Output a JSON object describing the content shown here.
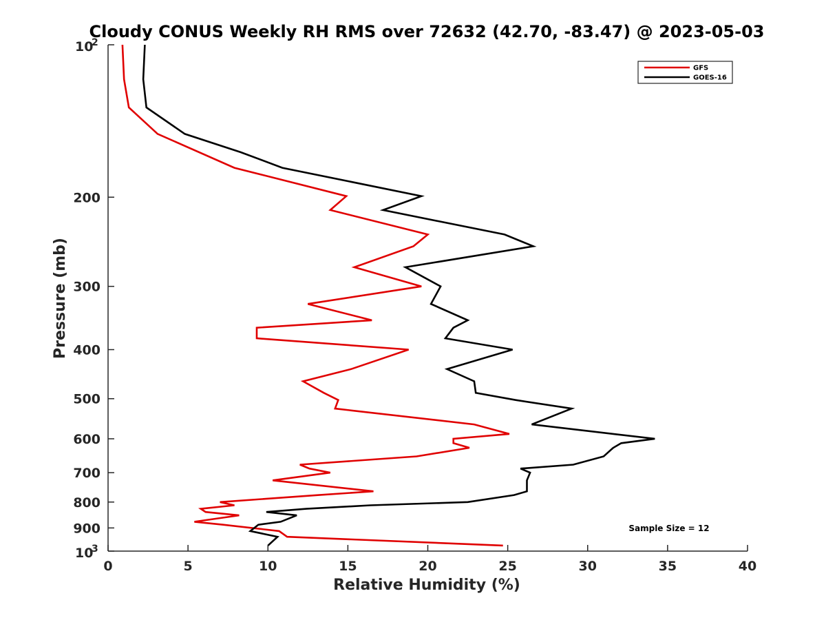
{
  "chart_data": {
    "type": "line",
    "title": "Cloudy CONUS Weekly RH RMS over 72632 (42.70, -83.47) @ 2023-05-03",
    "xlabel": "Relative Humidity (%)",
    "ylabel": "Pressure (mb)",
    "xlim": [
      0,
      40
    ],
    "ylim": [
      100,
      1000
    ],
    "y_scale": "log",
    "y_reversed": true,
    "grid": false,
    "legend_position": "top-right",
    "x_ticks": [
      0,
      5,
      10,
      15,
      20,
      25,
      30,
      35,
      40
    ],
    "x_tick_labels": [
      "0",
      "5",
      "10",
      "15",
      "20",
      "25",
      "30",
      "35",
      "40"
    ],
    "y_ticks": [
      {
        "value": 100,
        "base": "10",
        "exp": "2",
        "label": ""
      },
      {
        "value": 200,
        "base": "",
        "exp": "",
        "label": "200"
      },
      {
        "value": 300,
        "base": "",
        "exp": "",
        "label": "300"
      },
      {
        "value": 400,
        "base": "",
        "exp": "",
        "label": "400"
      },
      {
        "value": 500,
        "base": "",
        "exp": "",
        "label": "500"
      },
      {
        "value": 600,
        "base": "",
        "exp": "",
        "label": "600"
      },
      {
        "value": 700,
        "base": "",
        "exp": "",
        "label": "700"
      },
      {
        "value": 800,
        "base": "",
        "exp": "",
        "label": "800"
      },
      {
        "value": 900,
        "base": "",
        "exp": "",
        "label": "900"
      },
      {
        "value": 1000,
        "base": "10",
        "exp": "3",
        "label": ""
      }
    ],
    "annotation": "Sample Size = 12",
    "series": [
      {
        "name": "GFS",
        "color": "#e00000",
        "points": [
          [
            0.9,
            100
          ],
          [
            1.0,
            117
          ],
          [
            1.3,
            133
          ],
          [
            3.1,
            150
          ],
          [
            7.9,
            175
          ],
          [
            14.9,
            199
          ],
          [
            13.9,
            212
          ],
          [
            20.0,
            237
          ],
          [
            19.1,
            250
          ],
          [
            15.4,
            275
          ],
          [
            19.6,
            300
          ],
          [
            12.5,
            325
          ],
          [
            16.5,
            350
          ],
          [
            9.3,
            362
          ],
          [
            9.3,
            380
          ],
          [
            18.8,
            400
          ],
          [
            15.2,
            437
          ],
          [
            12.2,
            462
          ],
          [
            13.5,
            487
          ],
          [
            14.4,
            503
          ],
          [
            14.2,
            523
          ],
          [
            22.9,
            562
          ],
          [
            25.1,
            587
          ],
          [
            21.6,
            600
          ],
          [
            21.6,
            612
          ],
          [
            22.6,
            625
          ],
          [
            19.3,
            650
          ],
          [
            12.0,
            675
          ],
          [
            12.6,
            687
          ],
          [
            13.9,
            700
          ],
          [
            10.3,
            725
          ],
          [
            16.6,
            762
          ],
          [
            13.2,
            775
          ],
          [
            7.0,
            800
          ],
          [
            7.9,
            812
          ],
          [
            5.8,
            825
          ],
          [
            6.1,
            837
          ],
          [
            8.2,
            850
          ],
          [
            5.4,
            875
          ],
          [
            7.2,
            887
          ],
          [
            10.7,
            913
          ],
          [
            11.2,
            937
          ],
          [
            24.7,
            975
          ]
        ]
      },
      {
        "name": "GOES-16",
        "color": "#000000",
        "points": [
          [
            2.3,
            100
          ],
          [
            2.2,
            117
          ],
          [
            2.4,
            133
          ],
          [
            4.8,
            150
          ],
          [
            8.3,
            163
          ],
          [
            10.9,
            175
          ],
          [
            19.6,
            199
          ],
          [
            17.2,
            212
          ],
          [
            24.8,
            237
          ],
          [
            26.6,
            250
          ],
          [
            18.6,
            275
          ],
          [
            20.8,
            300
          ],
          [
            20.2,
            325
          ],
          [
            22.5,
            350
          ],
          [
            21.6,
            362
          ],
          [
            21.1,
            380
          ],
          [
            25.3,
            400
          ],
          [
            21.2,
            437
          ],
          [
            22.9,
            462
          ],
          [
            23.0,
            487
          ],
          [
            25.5,
            503
          ],
          [
            29.0,
            523
          ],
          [
            26.5,
            562
          ],
          [
            31.6,
            587
          ],
          [
            34.2,
            600
          ],
          [
            32.1,
            612
          ],
          [
            31.6,
            625
          ],
          [
            31.0,
            650
          ],
          [
            29.1,
            675
          ],
          [
            25.8,
            687
          ],
          [
            26.4,
            700
          ],
          [
            26.2,
            725
          ],
          [
            26.2,
            762
          ],
          [
            25.4,
            775
          ],
          [
            22.5,
            800
          ],
          [
            16.4,
            812
          ],
          [
            12.4,
            825
          ],
          [
            9.9,
            837
          ],
          [
            11.8,
            850
          ],
          [
            10.8,
            875
          ],
          [
            9.4,
            887
          ],
          [
            8.9,
            913
          ],
          [
            10.6,
            937
          ],
          [
            10.0,
            975
          ]
        ]
      }
    ]
  }
}
